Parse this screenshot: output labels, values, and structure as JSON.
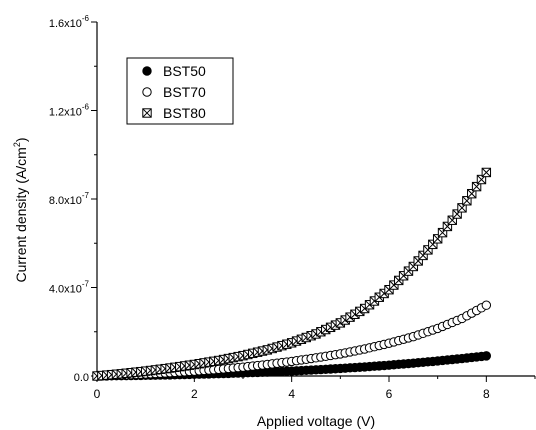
{
  "chart_data": {
    "type": "scatter",
    "xlabel": "Applied voltage (V)",
    "ylabel_main": "Current density (A/cm",
    "ylabel_sup": "2",
    "ylabel_close": ")",
    "xlim": [
      0,
      9
    ],
    "ylim": [
      0,
      1.6e-06
    ],
    "x_ticks": [
      0,
      2,
      4,
      6,
      8
    ],
    "x_tick_labels": [
      "0",
      "2",
      "4",
      "6",
      "8"
    ],
    "y_ticks": [
      0,
      4e-07,
      8e-07,
      1.2e-06,
      1.6e-06
    ],
    "y_tick_labels": [
      {
        "mantissa": "0.0",
        "exp": ""
      },
      {
        "mantissa": "4.0x10",
        "exp": "-7"
      },
      {
        "mantissa": "8.0x10",
        "exp": "-7"
      },
      {
        "mantissa": "1.2x10",
        "exp": "-6"
      },
      {
        "mantissa": "1.6x10",
        "exp": "-6"
      }
    ],
    "grid": false,
    "legend_position": "top-left",
    "series": [
      {
        "name": "BST50",
        "marker": "filled-circle",
        "x": [
          0.0,
          0.5,
          1.0,
          1.5,
          2.0,
          2.5,
          3.0,
          3.5,
          4.0,
          4.5,
          5.0,
          5.5,
          6.0,
          6.5,
          7.0,
          7.5,
          8.0
        ],
        "y": [
          0,
          1.5e-09,
          3e-09,
          5e-09,
          7.5e-09,
          1.05e-08,
          1.4e-08,
          1.8e-08,
          2.25e-08,
          2.8e-08,
          3.4e-08,
          4.1e-08,
          4.9e-08,
          5.8e-08,
          6.8e-08,
          7.9e-08,
          9.1e-08
        ]
      },
      {
        "name": "BST70",
        "marker": "open-circle",
        "x": [
          0.0,
          0.5,
          1.0,
          1.5,
          2.0,
          2.5,
          3.0,
          3.5,
          4.0,
          4.5,
          5.0,
          5.5,
          6.0,
          6.5,
          7.0,
          7.5,
          8.0
        ],
        "y": [
          0,
          4e-09,
          9e-09,
          1.5e-08,
          2.2e-08,
          3e-08,
          4e-08,
          5.2e-08,
          6.6e-08,
          8.2e-08,
          1e-07,
          1.22e-07,
          1.48e-07,
          1.78e-07,
          2.15e-07,
          2.6e-07,
          3.2e-07
        ]
      },
      {
        "name": "BST80",
        "marker": "crossed-square",
        "x": [
          0.0,
          0.5,
          1.0,
          1.5,
          2.0,
          2.5,
          3.0,
          3.5,
          4.0,
          4.5,
          5.0,
          5.5,
          6.0,
          6.5,
          7.0,
          7.5,
          8.0
        ],
        "y": [
          0,
          1e-08,
          2.2e-08,
          3.6e-08,
          5.2e-08,
          7e-08,
          9.2e-08,
          1.18e-07,
          1.5e-07,
          1.9e-07,
          2.4e-07,
          3.05e-07,
          3.9e-07,
          4.95e-07,
          6.2e-07,
          7.6e-07,
          9.2e-07
        ]
      }
    ]
  }
}
